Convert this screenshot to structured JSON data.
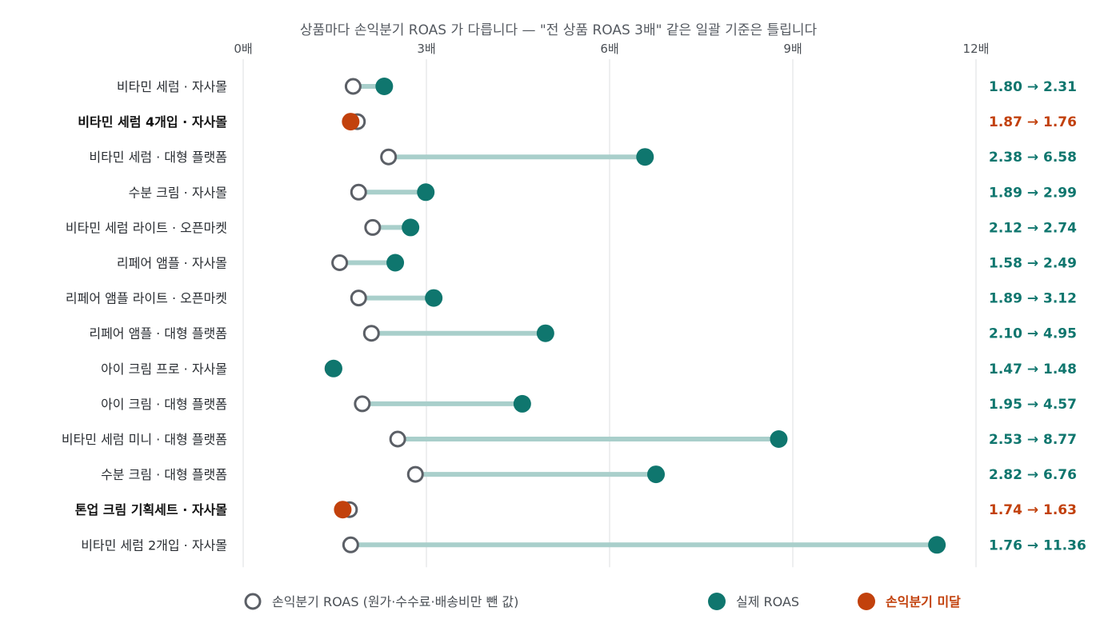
{
  "chart_data": {
    "type": "dumbbell",
    "title": "상품마다 손익분기 ROAS 가 다릅니다 — \"전 상품 ROAS 3배\" 같은 일괄 기준은 틀립니다",
    "x_ticks": [
      "0배",
      "3배",
      "6배",
      "9배",
      "12배"
    ],
    "x_tick_values": [
      0,
      3,
      6,
      9,
      12
    ],
    "xlim": [
      0,
      12
    ],
    "grid": true,
    "legend_position": "bottom",
    "colors": {
      "breakeven": "#5b5f66",
      "actual": "#0f766e",
      "below": "#c2410c",
      "connector": "#a9cfcb"
    },
    "legend": [
      {
        "label": "손익분기 ROAS (원가·수수료·배송비만 뺀 값)",
        "kind": "breakeven"
      },
      {
        "label": "실제 ROAS",
        "kind": "actual"
      },
      {
        "label": "손익분기 미달",
        "kind": "below"
      }
    ],
    "rows": [
      {
        "label": "비타민 세럼 · 자사몰",
        "breakeven": 1.8,
        "actual": 2.31,
        "value_label": "1.80 → 2.31",
        "below": false
      },
      {
        "label": "비타민 세럼 4개입 · 자사몰",
        "breakeven": 1.87,
        "actual": 1.76,
        "value_label": "1.87 → 1.76",
        "below": true
      },
      {
        "label": "비타민 세럼 · 대형 플랫폼",
        "breakeven": 2.38,
        "actual": 6.58,
        "value_label": "2.38 → 6.58",
        "below": false
      },
      {
        "label": "수분 크림 · 자사몰",
        "breakeven": 1.89,
        "actual": 2.99,
        "value_label": "1.89 → 2.99",
        "below": false
      },
      {
        "label": "비타민 세럼 라이트 · 오픈마켓",
        "breakeven": 2.12,
        "actual": 2.74,
        "value_label": "2.12 → 2.74",
        "below": false
      },
      {
        "label": "리페어 앰플 · 자사몰",
        "breakeven": 1.58,
        "actual": 2.49,
        "value_label": "1.58 → 2.49",
        "below": false
      },
      {
        "label": "리페어 앰플 라이트 · 오픈마켓",
        "breakeven": 1.89,
        "actual": 3.12,
        "value_label": "1.89 → 3.12",
        "below": false
      },
      {
        "label": "리페어 앰플 · 대형 플랫폼",
        "breakeven": 2.1,
        "actual": 4.95,
        "value_label": "2.10 → 4.95",
        "below": false
      },
      {
        "label": "아이 크림 프로 · 자사몰",
        "breakeven": 1.47,
        "actual": 1.48,
        "value_label": "1.47 → 1.48",
        "below": false
      },
      {
        "label": "아이 크림 · 대형 플랫폼",
        "breakeven": 1.95,
        "actual": 4.57,
        "value_label": "1.95 → 4.57",
        "below": false
      },
      {
        "label": "비타민 세럼 미니 · 대형 플랫폼",
        "breakeven": 2.53,
        "actual": 8.77,
        "value_label": "2.53 → 8.77",
        "below": false
      },
      {
        "label": "수분 크림 · 대형 플랫폼",
        "breakeven": 2.82,
        "actual": 6.76,
        "value_label": "2.82 → 6.76",
        "below": false
      },
      {
        "label": "톤업 크림 기획세트 · 자사몰",
        "breakeven": 1.74,
        "actual": 1.63,
        "value_label": "1.74 → 1.63",
        "below": true
      },
      {
        "label": "비타민 세럼 2개입 · 자사몰",
        "breakeven": 1.76,
        "actual": 11.36,
        "value_label": "1.76 → 11.36",
        "below": false
      }
    ]
  }
}
